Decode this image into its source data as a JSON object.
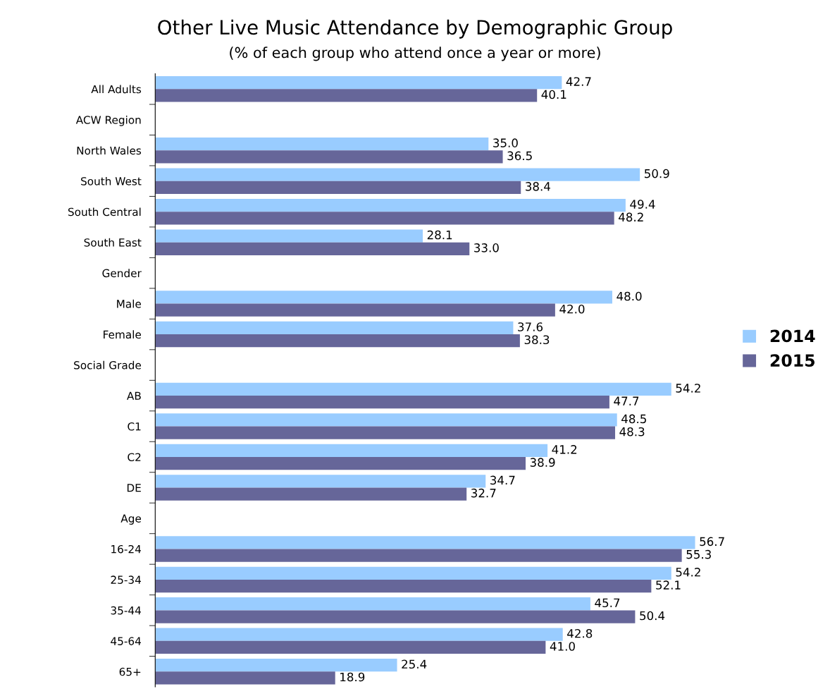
{
  "chart_data": {
    "type": "bar",
    "orientation": "horizontal",
    "title": "Other Live Music Attendance by Demographic Group",
    "subtitle": "(% of each group who attend once a year or more)",
    "categories": [
      "All Adults",
      "ACW Region",
      "North Wales",
      "South West",
      "South Central",
      "South East",
      "Gender",
      "Male",
      "Female",
      "Social Grade",
      "AB",
      "C1",
      "C2",
      "DE",
      "Age",
      "16-24",
      "25-34",
      "35-44",
      "45-64",
      "65+"
    ],
    "series": [
      {
        "name": "2014",
        "color": "#99ccff",
        "values": [
          42.7,
          null,
          35.0,
          50.9,
          49.4,
          28.1,
          null,
          48.0,
          37.6,
          null,
          54.2,
          48.5,
          41.2,
          34.7,
          null,
          56.7,
          54.2,
          45.7,
          42.8,
          25.4
        ],
        "value_labels": [
          "42.7",
          null,
          "35.0",
          "50.9",
          "49.4",
          "28.1",
          null,
          "48.0",
          "37.6",
          null,
          "54.2",
          "48.5",
          "41.2",
          "34.7",
          null,
          "56.7",
          "54.2",
          "45.7",
          "42.8",
          "25.4"
        ]
      },
      {
        "name": "2015",
        "color": "#666699",
        "values": [
          40.1,
          null,
          36.5,
          38.4,
          48.2,
          33.0,
          null,
          42.0,
          38.3,
          null,
          47.7,
          48.3,
          38.9,
          32.7,
          null,
          55.3,
          52.1,
          50.4,
          41.0,
          18.9
        ],
        "value_labels": [
          "40.1",
          null,
          "36.5",
          "38.4",
          "48.2",
          "33.0",
          null,
          "42.0",
          "38.3",
          null,
          "47.7",
          "48.3",
          "38.9",
          "32.7",
          null,
          "55.3",
          "52.1",
          "50.4",
          "41.0",
          "18.9"
        ]
      }
    ],
    "legend": "right",
    "grid": false,
    "tick_labels": "y"
  }
}
